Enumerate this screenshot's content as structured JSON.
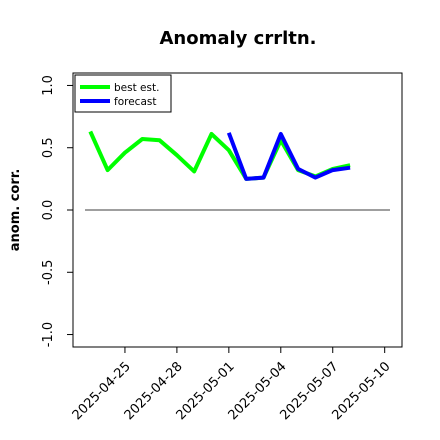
{
  "chart_data": {
    "type": "line",
    "title": "Anomaly crrltn.",
    "xlabel": "",
    "ylabel": "anom. corr.",
    "ylim": [
      -1.1,
      1.1
    ],
    "yticks": [
      "-1.0",
      "-0.5",
      "0.0",
      "0.5",
      "1.0"
    ],
    "ytick_values": [
      -1.0,
      -0.5,
      0.0,
      0.5,
      1.0
    ],
    "xlim": [
      "2025-04-22",
      "2025-05-11"
    ],
    "xtick_values": [
      "2025-04-25",
      "2025-04-28",
      "2025-05-01",
      "2025-05-04",
      "2025-05-07",
      "2025-05-10"
    ],
    "xticks": [
      "2025-04-25",
      "2025-04-28",
      "2025-05-01",
      "2025-05-04",
      "2025-05-07",
      "2025-05-10"
    ],
    "xtick_colors": [
      "#000000",
      "#000000",
      "#228B22",
      "#000000",
      "#000000",
      "#000000"
    ],
    "hline": {
      "y": 0.0,
      "color": "#666666"
    },
    "legend": {
      "position": "top-left",
      "frame": true
    },
    "grid": false,
    "series": [
      {
        "name": "best est.",
        "color": "#00ff00",
        "x": [
          "2025-04-23",
          "2025-04-24",
          "2025-04-25",
          "2025-04-26",
          "2025-04-27",
          "2025-04-28",
          "2025-04-29",
          "2025-04-30",
          "2025-05-01",
          "2025-05-02",
          "2025-05-03",
          "2025-05-04",
          "2025-05-05",
          "2025-05-06",
          "2025-05-07",
          "2025-05-08"
        ],
        "y": [
          0.63,
          0.32,
          0.46,
          0.57,
          0.56,
          0.44,
          0.31,
          0.61,
          0.48,
          0.25,
          0.26,
          0.56,
          0.32,
          0.27,
          0.33,
          0.36
        ]
      },
      {
        "name": "forecast",
        "color": "#0000ff",
        "x": [
          "2025-05-01",
          "2025-05-02",
          "2025-05-03",
          "2025-05-04",
          "2025-05-05",
          "2025-05-06",
          "2025-05-07",
          "2025-05-08"
        ],
        "y": [
          0.62,
          0.25,
          0.26,
          0.61,
          0.33,
          0.26,
          0.32,
          0.34
        ]
      }
    ]
  }
}
